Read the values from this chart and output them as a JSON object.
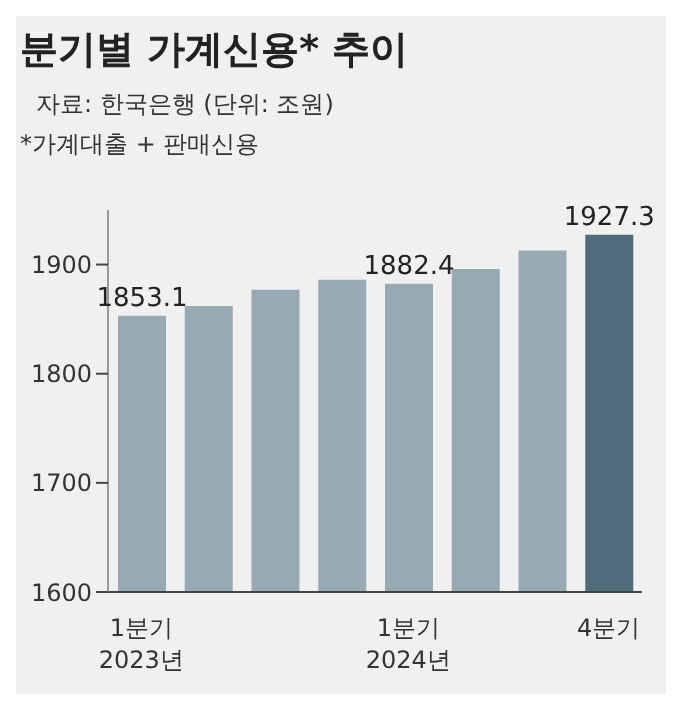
{
  "chart_data": {
    "type": "bar",
    "title": "분기별 가계신용* 추이",
    "subtitle": "자료: 한국은행 (단위: 조원)",
    "annotations": [
      "*가계대출 + 판매신용"
    ],
    "categories": [
      "1분기\n2023년",
      null,
      null,
      null,
      "1분기\n2024년",
      null,
      null,
      "4분기"
    ],
    "values": [
      1853.1,
      1862,
      1877,
      1886,
      1882.4,
      1896,
      1913,
      1927.3
    ],
    "value_labels": [
      "1853.1",
      null,
      null,
      null,
      "1882.4",
      null,
      null,
      "1927.3"
    ],
    "colors": [
      "#97a9b3",
      "#97a9b3",
      "#97a9b3",
      "#97a9b3",
      "#97a9b3",
      "#97a9b3",
      "#97a9b3",
      "#506d7c"
    ],
    "ylim": [
      1600,
      1950
    ],
    "yticks": [
      1600,
      1700,
      1800,
      1900
    ],
    "grid": false,
    "legend": false
  }
}
